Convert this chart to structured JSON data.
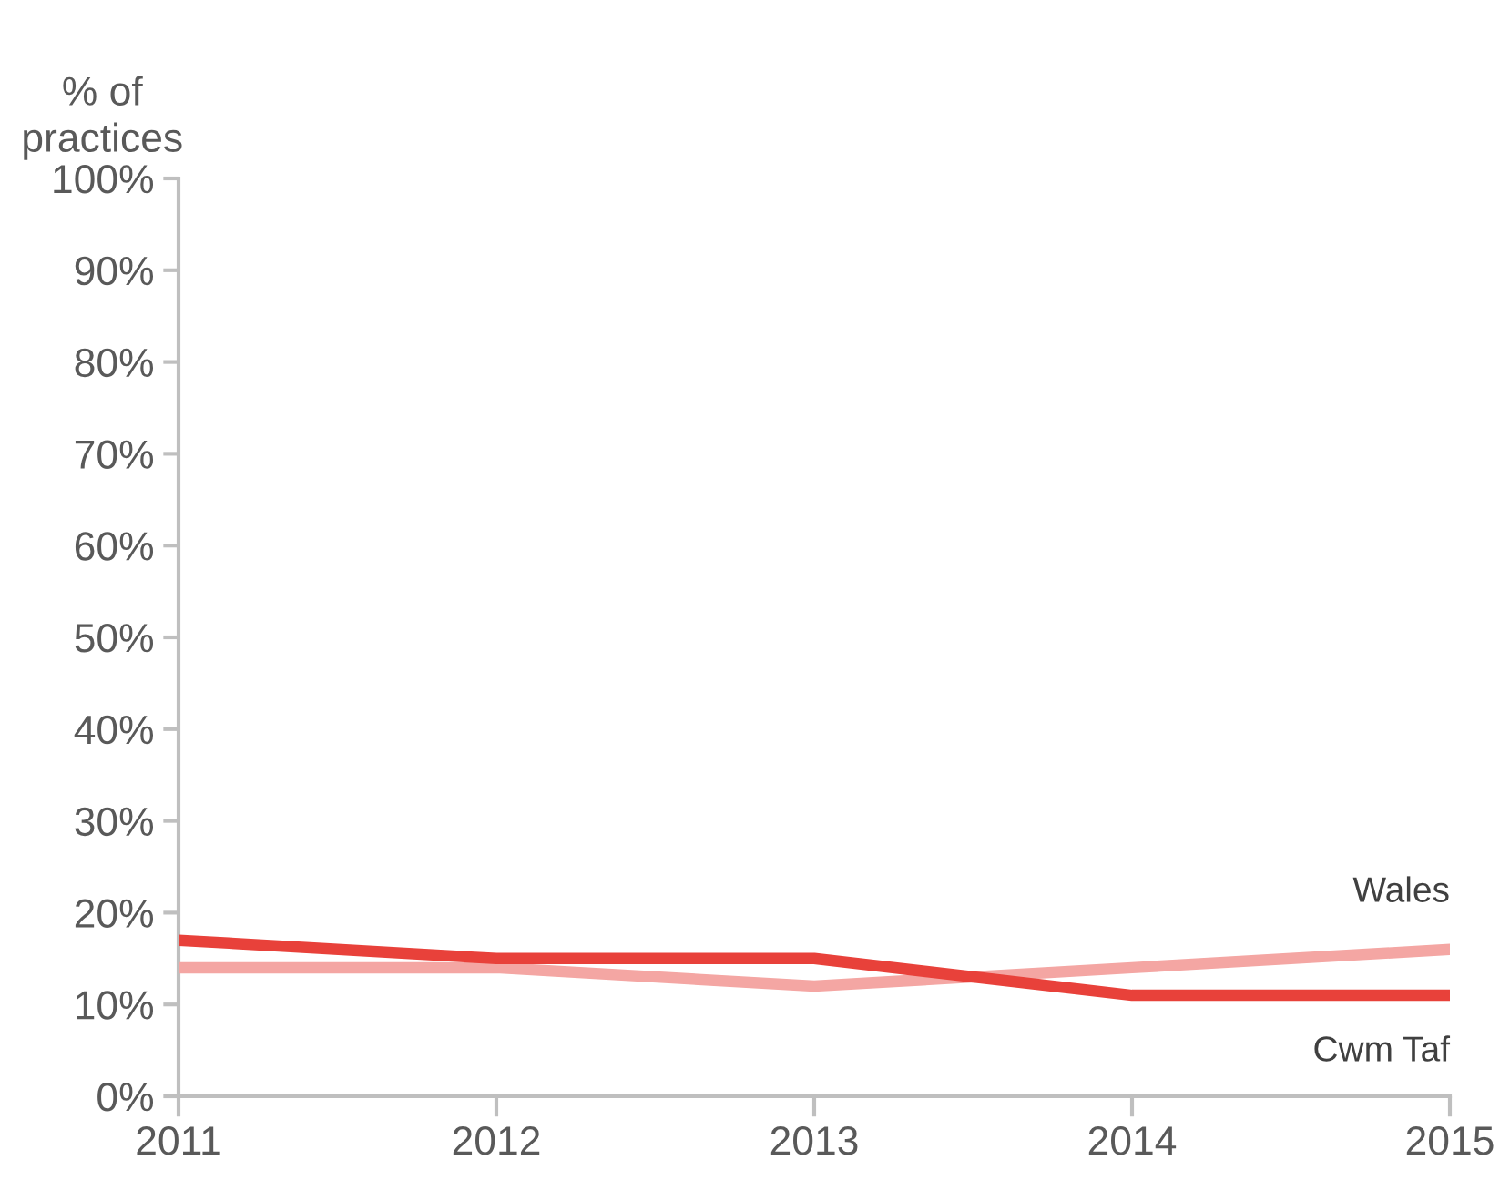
{
  "chart_data": {
    "type": "line",
    "ylabel": "% of\npractices",
    "x": [
      2011,
      2012,
      2013,
      2014,
      2015
    ],
    "series": [
      {
        "name": "Cwm Taf",
        "color": "#e8413a",
        "values": [
          17,
          15,
          15,
          11,
          11
        ]
      },
      {
        "name": "Wales",
        "color": "#f4a6a3",
        "values": [
          14,
          14,
          12,
          14,
          16
        ]
      }
    ],
    "xlim": [
      2011,
      2015
    ],
    "xticks": [
      2011,
      2012,
      2013,
      2014,
      2015
    ],
    "ylim": [
      0,
      100
    ],
    "yticks": [
      {
        "value": 0,
        "label": "0%"
      },
      {
        "value": 10,
        "label": "10%"
      },
      {
        "value": 20,
        "label": "20%"
      },
      {
        "value": 30,
        "label": "30%"
      },
      {
        "value": 40,
        "label": "40%"
      },
      {
        "value": 50,
        "label": "50%"
      },
      {
        "value": 60,
        "label": "60%"
      },
      {
        "value": 70,
        "label": "70%"
      },
      {
        "value": 80,
        "label": "80%"
      },
      {
        "value": 90,
        "label": "90%"
      },
      {
        "value": 100,
        "label": "100%"
      }
    ],
    "grid": false,
    "legend": false,
    "marker": "none",
    "line_style": "solid"
  }
}
